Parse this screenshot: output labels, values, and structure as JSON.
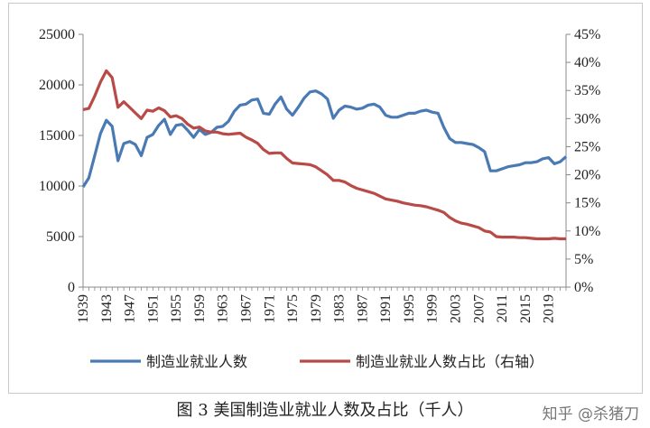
{
  "caption": "图 3  美国制造业就业人数及占比（千人）",
  "watermark": "知乎 @杀猪刀",
  "chart_data": {
    "type": "line",
    "x_ticks": [
      "1939",
      "1943",
      "1947",
      "1951",
      "1955",
      "1959",
      "1963",
      "1967",
      "1971",
      "1975",
      "1979",
      "1983",
      "1987",
      "1991",
      "1995",
      "1999",
      "2003",
      "2007",
      "2011",
      "2015",
      "2019"
    ],
    "y_left_ticks": [
      "0",
      "5000",
      "10000",
      "15000",
      "20000",
      "25000"
    ],
    "y_right_ticks": [
      "0%",
      "5%",
      "10%",
      "15%",
      "20%",
      "25%",
      "30%",
      "35%",
      "40%",
      "45%"
    ],
    "ylim_left": [
      0,
      25000
    ],
    "ylim_right": [
      0,
      0.45
    ],
    "xlim": [
      1939,
      2022
    ],
    "grid": false,
    "legend_position": "bottom",
    "colors": {
      "employment": "#4a7ab4",
      "share": "#b84a47"
    },
    "series": [
      {
        "name": "制造业就业人数",
        "axis": "left",
        "x": [
          1939,
          1940,
          1941,
          1942,
          1943,
          1944,
          1945,
          1946,
          1947,
          1948,
          1949,
          1950,
          1951,
          1952,
          1953,
          1954,
          1955,
          1956,
          1957,
          1958,
          1959,
          1960,
          1961,
          1962,
          1963,
          1964,
          1965,
          1966,
          1967,
          1968,
          1969,
          1970,
          1971,
          1972,
          1973,
          1974,
          1975,
          1976,
          1977,
          1978,
          1979,
          1980,
          1981,
          1982,
          1983,
          1984,
          1985,
          1986,
          1987,
          1988,
          1989,
          1990,
          1991,
          1992,
          1993,
          1994,
          1995,
          1996,
          1997,
          1998,
          1999,
          2000,
          2001,
          2002,
          2003,
          2004,
          2005,
          2006,
          2007,
          2008,
          2009,
          2010,
          2011,
          2012,
          2013,
          2014,
          2015,
          2016,
          2017,
          2018,
          2019,
          2020,
          2021,
          2022
        ],
        "values": [
          9900,
          10800,
          13000,
          15200,
          16500,
          15900,
          12500,
          14200,
          14400,
          14100,
          13000,
          14800,
          15100,
          16000,
          16600,
          15100,
          16000,
          16100,
          15500,
          14800,
          15600,
          15100,
          15300,
          15800,
          15900,
          16400,
          17400,
          18000,
          18100,
          18500,
          18600,
          17200,
          17100,
          18100,
          18800,
          17600,
          17000,
          17800,
          18700,
          19300,
          19400,
          19100,
          18600,
          16700,
          17500,
          17900,
          17800,
          17600,
          17700,
          18000,
          18100,
          17800,
          17000,
          16800,
          16800,
          17000,
          17200,
          17200,
          17400,
          17500,
          17300,
          17200,
          15800,
          14700,
          14300,
          14300,
          14200,
          14100,
          13800,
          13400,
          11500,
          11500,
          11700,
          11900,
          12000,
          12100,
          12300,
          12300,
          12400,
          12700,
          12800,
          12200,
          12400,
          12900
        ]
      },
      {
        "name": "制造业就业人数占比（右轴）",
        "axis": "right",
        "x": [
          1939,
          1940,
          1941,
          1942,
          1943,
          1944,
          1945,
          1946,
          1947,
          1948,
          1949,
          1950,
          1951,
          1952,
          1953,
          1954,
          1955,
          1956,
          1957,
          1958,
          1959,
          1960,
          1961,
          1962,
          1963,
          1964,
          1965,
          1966,
          1967,
          1968,
          1969,
          1970,
          1971,
          1972,
          1973,
          1974,
          1975,
          1976,
          1977,
          1978,
          1979,
          1980,
          1981,
          1982,
          1983,
          1984,
          1985,
          1986,
          1987,
          1988,
          1989,
          1990,
          1991,
          1992,
          1993,
          1994,
          1995,
          1996,
          1997,
          1998,
          1999,
          2000,
          2001,
          2002,
          2003,
          2004,
          2005,
          2006,
          2007,
          2008,
          2009,
          2010,
          2011,
          2012,
          2013,
          2014,
          2015,
          2016,
          2017,
          2018,
          2019,
          2020,
          2021,
          2022
        ],
        "values": [
          0.316,
          0.318,
          0.34,
          0.365,
          0.385,
          0.373,
          0.32,
          0.33,
          0.32,
          0.31,
          0.3,
          0.315,
          0.313,
          0.319,
          0.314,
          0.303,
          0.305,
          0.3,
          0.29,
          0.283,
          0.285,
          0.278,
          0.276,
          0.276,
          0.273,
          0.272,
          0.273,
          0.274,
          0.267,
          0.262,
          0.256,
          0.245,
          0.238,
          0.239,
          0.239,
          0.229,
          0.221,
          0.22,
          0.219,
          0.218,
          0.214,
          0.207,
          0.2,
          0.19,
          0.19,
          0.187,
          0.181,
          0.176,
          0.173,
          0.17,
          0.167,
          0.162,
          0.157,
          0.155,
          0.153,
          0.15,
          0.148,
          0.146,
          0.145,
          0.143,
          0.14,
          0.137,
          0.133,
          0.124,
          0.118,
          0.114,
          0.112,
          0.109,
          0.106,
          0.1,
          0.098,
          0.09,
          0.089,
          0.089,
          0.089,
          0.088,
          0.088,
          0.087,
          0.086,
          0.086,
          0.086,
          0.087,
          0.086,
          0.086
        ]
      }
    ]
  }
}
